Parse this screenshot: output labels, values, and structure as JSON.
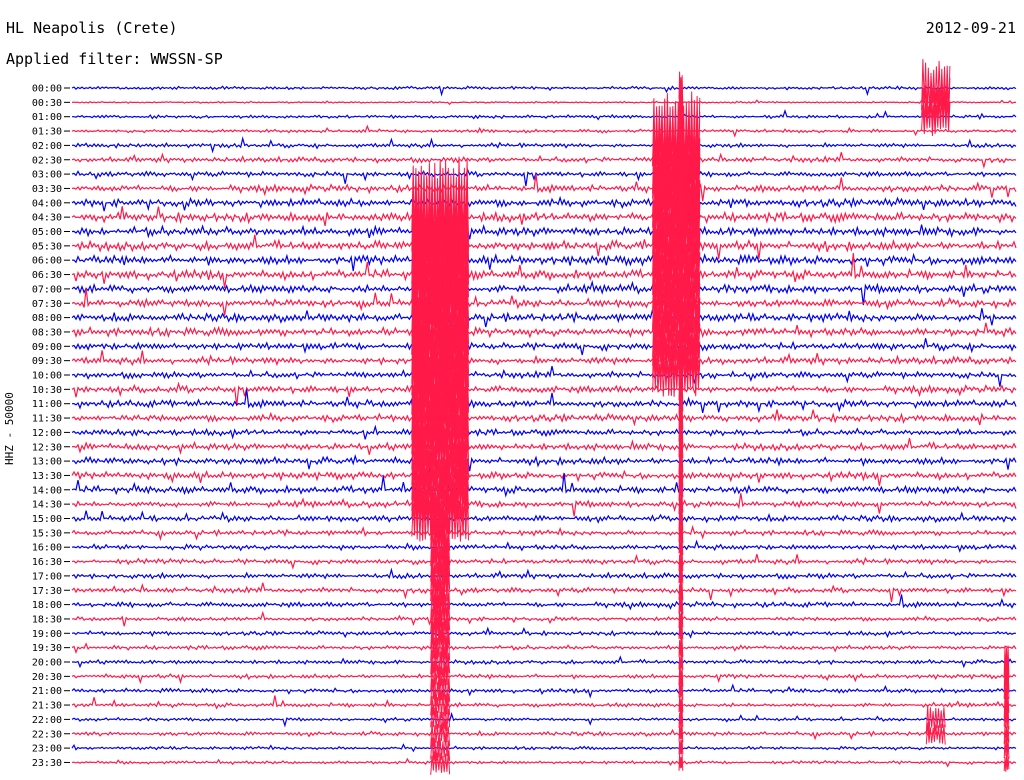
{
  "header": {
    "station": "HL Neapolis (Crete)",
    "date": "2012-09-21",
    "filter": "Applied filter: WWSSN-SP",
    "channel_label": "HHZ - 50000"
  },
  "chart_data": {
    "type": "helicorder",
    "title": "HL Neapolis (Crete)",
    "subtitle": "Applied filter: WWSSN-SP",
    "date": "2012-09-21",
    "ylabel": "HHZ - 50000",
    "line_colors": [
      "#0000ee",
      "#ff1a4a"
    ],
    "rows": [
      {
        "label": "00:00",
        "color": "#0000ee",
        "amp": 0.3
      },
      {
        "label": "00:30",
        "color": "#ff1a4a",
        "amp": 0.15
      },
      {
        "label": "01:00",
        "color": "#0000ee",
        "amp": 0.3
      },
      {
        "label": "01:30",
        "color": "#ff1a4a",
        "amp": 0.3
      },
      {
        "label": "02:00",
        "color": "#0000ee",
        "amp": 0.4
      },
      {
        "label": "02:30",
        "color": "#ff1a4a",
        "amp": 0.5
      },
      {
        "label": "03:00",
        "color": "#0000ee",
        "amp": 0.5
      },
      {
        "label": "03:30",
        "color": "#ff1a4a",
        "amp": 0.7
      },
      {
        "label": "04:00",
        "color": "#0000ee",
        "amp": 0.8
      },
      {
        "label": "04:30",
        "color": "#ff1a4a",
        "amp": 0.9
      },
      {
        "label": "05:00",
        "color": "#0000ee",
        "amp": 0.9
      },
      {
        "label": "05:30",
        "color": "#ff1a4a",
        "amp": 0.9
      },
      {
        "label": "06:00",
        "color": "#0000ee",
        "amp": 0.9
      },
      {
        "label": "06:30",
        "color": "#ff1a4a",
        "amp": 0.9
      },
      {
        "label": "07:00",
        "color": "#0000ee",
        "amp": 0.8
      },
      {
        "label": "07:30",
        "color": "#ff1a4a",
        "amp": 0.8
      },
      {
        "label": "08:00",
        "color": "#0000ee",
        "amp": 0.8
      },
      {
        "label": "08:30",
        "color": "#ff1a4a",
        "amp": 0.8
      },
      {
        "label": "09:00",
        "color": "#0000ee",
        "amp": 0.7
      },
      {
        "label": "09:30",
        "color": "#ff1a4a",
        "amp": 0.7
      },
      {
        "label": "10:00",
        "color": "#0000ee",
        "amp": 0.6
      },
      {
        "label": "10:30",
        "color": "#ff1a4a",
        "amp": 0.7
      },
      {
        "label": "11:00",
        "color": "#0000ee",
        "amp": 0.7
      },
      {
        "label": "11:30",
        "color": "#ff1a4a",
        "amp": 0.7
      },
      {
        "label": "12:00",
        "color": "#0000ee",
        "amp": 0.6
      },
      {
        "label": "12:30",
        "color": "#ff1a4a",
        "amp": 0.7
      },
      {
        "label": "13:00",
        "color": "#0000ee",
        "amp": 0.7
      },
      {
        "label": "13:30",
        "color": "#ff1a4a",
        "amp": 0.7
      },
      {
        "label": "14:00",
        "color": "#0000ee",
        "amp": 0.7
      },
      {
        "label": "14:30",
        "color": "#ff1a4a",
        "amp": 0.6
      },
      {
        "label": "15:00",
        "color": "#0000ee",
        "amp": 0.6
      },
      {
        "label": "15:30",
        "color": "#ff1a4a",
        "amp": 0.5
      },
      {
        "label": "16:00",
        "color": "#0000ee",
        "amp": 0.5
      },
      {
        "label": "16:30",
        "color": "#ff1a4a",
        "amp": 0.5
      },
      {
        "label": "17:00",
        "color": "#0000ee",
        "amp": 0.5
      },
      {
        "label": "17:30",
        "color": "#ff1a4a",
        "amp": 0.5
      },
      {
        "label": "18:00",
        "color": "#0000ee",
        "amp": 0.5
      },
      {
        "label": "18:30",
        "color": "#ff1a4a",
        "amp": 0.4
      },
      {
        "label": "19:00",
        "color": "#0000ee",
        "amp": 0.4
      },
      {
        "label": "19:30",
        "color": "#ff1a4a",
        "amp": 0.4
      },
      {
        "label": "20:00",
        "color": "#0000ee",
        "amp": 0.4
      },
      {
        "label": "20:30",
        "color": "#ff1a4a",
        "amp": 0.4
      },
      {
        "label": "21:00",
        "color": "#0000ee",
        "amp": 0.4
      },
      {
        "label": "21:30",
        "color": "#ff1a4a",
        "amp": 0.4
      },
      {
        "label": "22:00",
        "color": "#0000ee",
        "amp": 0.3
      },
      {
        "label": "22:30",
        "color": "#ff1a4a",
        "amp": 0.4
      },
      {
        "label": "23:00",
        "color": "#0000ee",
        "amp": 0.3
      },
      {
        "label": "23:30",
        "color": "#ff1a4a",
        "amp": 0.3
      }
    ],
    "events": [
      {
        "start_row": 0,
        "end_row": 2,
        "pos": 0.915,
        "width": 0.03,
        "amp": 5,
        "color": "#ff1a4a"
      },
      {
        "start_row": 8,
        "end_row": 30,
        "pos": 0.39,
        "width": 0.06,
        "amp": 8,
        "color": "#ff1a4a"
      },
      {
        "start_row": 3,
        "end_row": 20,
        "pos": 0.64,
        "width": 0.05,
        "amp": 7,
        "color": "#ff1a4a"
      },
      {
        "start_row": 0,
        "end_row": 47,
        "pos": 0.645,
        "width": 0.004,
        "amp": 3,
        "color": "#ff1a4a"
      },
      {
        "start_row": 30,
        "end_row": 47,
        "pos": 0.39,
        "width": 0.02,
        "amp": 4,
        "color": "#ff1a4a"
      },
      {
        "start_row": 44,
        "end_row": 45,
        "pos": 0.915,
        "width": 0.02,
        "amp": 2.5,
        "color": "#ff1a4a"
      },
      {
        "start_row": 40,
        "end_row": 47,
        "pos": 0.99,
        "width": 0.005,
        "amp": 3,
        "color": "#ff1a4a"
      }
    ]
  }
}
